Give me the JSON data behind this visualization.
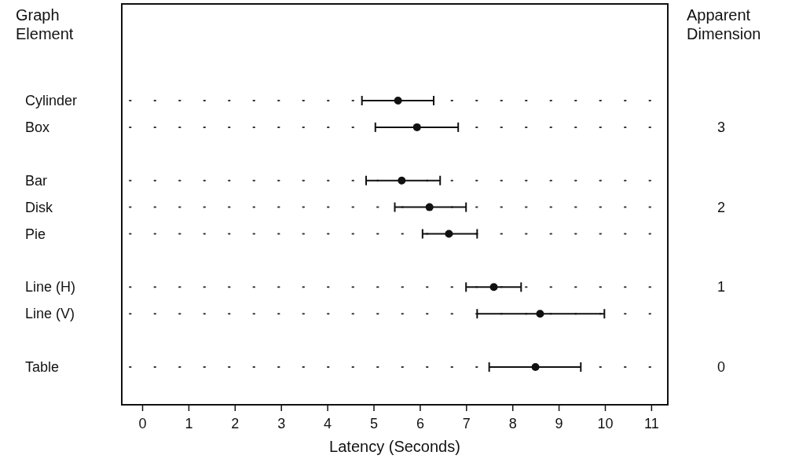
{
  "chart_data": {
    "type": "scatter",
    "orientation": "horizontal",
    "xlabel": "Latency (Seconds)",
    "ylabel": "Graph Element",
    "y2label": "Apparent Dimension",
    "categories": [
      "Cylinder",
      "Box",
      null,
      "Bar",
      "Disk",
      "Pie",
      null,
      "Line (H)",
      "Line (V)",
      null,
      "Table"
    ],
    "y2_categories": [
      null,
      "3",
      null,
      null,
      "2",
      null,
      null,
      "1",
      null,
      null,
      "0"
    ],
    "series": [
      {
        "color": "#111111",
        "values": [
          5.52,
          5.93,
          null,
          5.6,
          6.2,
          6.62,
          null,
          7.59,
          8.59,
          null,
          8.49
        ],
        "errors": [
          [
            4.74,
            6.29
          ],
          [
            5.03,
            6.82
          ],
          null,
          [
            4.83,
            6.43
          ],
          [
            5.45,
            6.99
          ],
          [
            6.05,
            7.23
          ],
          null,
          [
            6.99,
            8.18
          ],
          [
            7.23,
            9.98
          ],
          null,
          [
            7.49,
            9.47
          ]
        ]
      }
    ],
    "xlim": [
      -0.45,
      11.35
    ],
    "xticks": [
      0,
      1,
      2,
      3,
      4,
      5,
      6,
      7,
      8,
      9,
      10,
      11
    ],
    "grid": "y",
    "marker": "circle"
  }
}
